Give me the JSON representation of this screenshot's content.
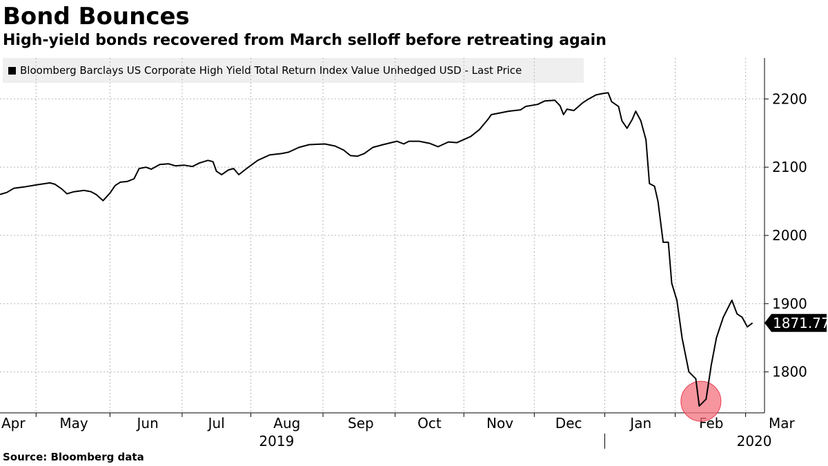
{
  "title": "Bond Bounces",
  "subtitle": "High-yield bonds recovered from March selloff before retreating again",
  "source": "Source: Bloomberg data",
  "chart_data": {
    "type": "line",
    "legend_position": "top-left",
    "grid": true,
    "series": [
      {
        "name": "Bloomberg Barclays US Corporate High Yield Total Return Index Value Unhedged USD - Last Price",
        "color": "#000000",
        "last_value_label": "1871.77",
        "points": [
          [
            "2019-04-01",
            2060
          ],
          [
            "2019-04-05",
            2063
          ],
          [
            "2019-04-09",
            2069
          ],
          [
            "2019-04-15",
            2071
          ],
          [
            "2019-04-22",
            2074
          ],
          [
            "2019-04-30",
            2077
          ],
          [
            "2019-05-03",
            2075
          ],
          [
            "2019-05-07",
            2068
          ],
          [
            "2019-05-10",
            2061
          ],
          [
            "2019-05-14",
            2064
          ],
          [
            "2019-05-20",
            2066
          ],
          [
            "2019-05-24",
            2064
          ],
          [
            "2019-05-27",
            2060
          ],
          [
            "2019-05-31",
            2051
          ],
          [
            "2019-06-04",
            2062
          ],
          [
            "2019-06-07",
            2073
          ],
          [
            "2019-06-10",
            2078
          ],
          [
            "2019-06-14",
            2079
          ],
          [
            "2019-06-18",
            2083
          ],
          [
            "2019-06-21",
            2098
          ],
          [
            "2019-06-25",
            2100
          ],
          [
            "2019-06-28",
            2097
          ],
          [
            "2019-07-03",
            2104
          ],
          [
            "2019-07-08",
            2105
          ],
          [
            "2019-07-12",
            2102
          ],
          [
            "2019-07-17",
            2103
          ],
          [
            "2019-07-22",
            2101
          ],
          [
            "2019-07-26",
            2106
          ],
          [
            "2019-07-31",
            2110
          ],
          [
            "2019-08-03",
            2108
          ],
          [
            "2019-08-05",
            2094
          ],
          [
            "2019-08-08",
            2089
          ],
          [
            "2019-08-12",
            2096
          ],
          [
            "2019-08-15",
            2098
          ],
          [
            "2019-08-18",
            2089
          ],
          [
            "2019-08-22",
            2097
          ],
          [
            "2019-08-29",
            2110
          ],
          [
            "2019-09-05",
            2118
          ],
          [
            "2019-09-12",
            2120
          ],
          [
            "2019-09-16",
            2122
          ],
          [
            "2019-09-22",
            2129
          ],
          [
            "2019-09-28",
            2133
          ],
          [
            "2019-10-07",
            2134
          ],
          [
            "2019-10-13",
            2131
          ],
          [
            "2019-10-18",
            2125
          ],
          [
            "2019-10-22",
            2117
          ],
          [
            "2019-10-26",
            2116
          ],
          [
            "2019-10-30",
            2120
          ],
          [
            "2019-11-04",
            2129
          ],
          [
            "2019-11-10",
            2133
          ],
          [
            "2019-11-18",
            2138
          ],
          [
            "2019-11-22",
            2134
          ],
          [
            "2019-11-25",
            2138
          ],
          [
            "2019-12-01",
            2138
          ],
          [
            "2019-12-07",
            2135
          ],
          [
            "2019-12-12",
            2130
          ],
          [
            "2019-12-18",
            2137
          ],
          [
            "2019-12-23",
            2136
          ],
          [
            "2019-12-31",
            2145
          ],
          [
            "2020-01-05",
            2155
          ],
          [
            "2020-01-10",
            2170
          ],
          [
            "2020-01-12",
            2177
          ],
          [
            "2020-01-18",
            2180
          ],
          [
            "2020-01-22",
            2182
          ],
          [
            "2020-01-29",
            2184
          ],
          [
            "2020-02-01",
            2189
          ],
          [
            "2020-02-08",
            2192
          ],
          [
            "2020-02-12",
            2197
          ],
          [
            "2020-02-18",
            2198
          ],
          [
            "2020-02-21",
            2190
          ],
          [
            "2020-02-23",
            2177
          ],
          [
            "2020-02-25",
            2185
          ],
          [
            "2020-02-29",
            2183
          ],
          [
            "2020-03-05",
            2194
          ],
          [
            "2020-03-08",
            2199
          ],
          [
            "2020-03-13",
            2206
          ],
          [
            "2020-03-17",
            2208
          ],
          [
            "2020-03-20",
            2209
          ],
          [
            "2020-03-22",
            2196
          ],
          [
            "2020-03-26",
            2189
          ],
          [
            "2020-03-28",
            2168
          ],
          [
            "2020-03-31",
            2157
          ],
          [
            "2020-04-03",
            2170
          ],
          [
            "2020-04-05",
            2182
          ],
          [
            "2020-04-08",
            2168
          ],
          [
            "2020-04-11",
            2140
          ],
          [
            "2020-04-13",
            2076
          ],
          [
            "2020-04-16",
            2072
          ],
          [
            "2020-04-18",
            2050
          ],
          [
            "2020-04-21",
            1990
          ],
          [
            "2020-04-24",
            1990
          ],
          [
            "2020-04-26",
            1930
          ],
          [
            "2020-04-29",
            1905
          ],
          [
            "2020-05-02",
            1850
          ],
          [
            "2020-05-06",
            1800
          ],
          [
            "2020-05-10",
            1790
          ],
          [
            "2020-05-12",
            1750
          ],
          [
            "2020-05-16",
            1760
          ],
          [
            "2020-05-19",
            1810
          ],
          [
            "2020-05-22",
            1850
          ],
          [
            "2020-05-26",
            1880
          ],
          [
            "2020-05-31",
            1905
          ],
          [
            "2020-06-03",
            1885
          ],
          [
            "2020-06-06",
            1880
          ],
          [
            "2020-06-09",
            1866
          ],
          [
            "2020-06-12",
            1871.77
          ]
        ]
      }
    ],
    "y_axis": {
      "side": "right",
      "min": 1740,
      "max": 2260,
      "ticks": [
        1800,
        1900,
        2000,
        2100,
        2200
      ]
    },
    "x_axis": {
      "min": "2019-04-01",
      "max": "2020-06-19",
      "month_ticks": [
        {
          "label": "Apr",
          "date": "2019-04-01"
        },
        {
          "label": "May",
          "date": "2019-05-14"
        },
        {
          "label": "Jun",
          "date": "2019-06-26"
        },
        {
          "label": "Jul",
          "date": "2019-08-05"
        },
        {
          "label": "Aug",
          "date": "2019-09-15"
        },
        {
          "label": "Sep",
          "date": "2019-10-28"
        },
        {
          "label": "Oct",
          "date": "2019-12-07"
        },
        {
          "label": "Nov",
          "date": "2020-01-17"
        },
        {
          "label": "Dec",
          "date": "2020-02-26"
        },
        {
          "label": "Jan",
          "date": "2020-04-08"
        },
        {
          "label": "Feb",
          "date": "2020-05-19"
        },
        {
          "label": "Mar",
          "date": "2020-06-29"
        }
      ],
      "year_labels": [
        {
          "label": "2019",
          "date": "2019-09-09"
        },
        {
          "label": "2020",
          "date": "2020-06-13"
        }
      ]
    },
    "annotation": {
      "type": "circle",
      "color": "#f4717e",
      "at": [
        "2020-05-13",
        1757
      ]
    }
  }
}
